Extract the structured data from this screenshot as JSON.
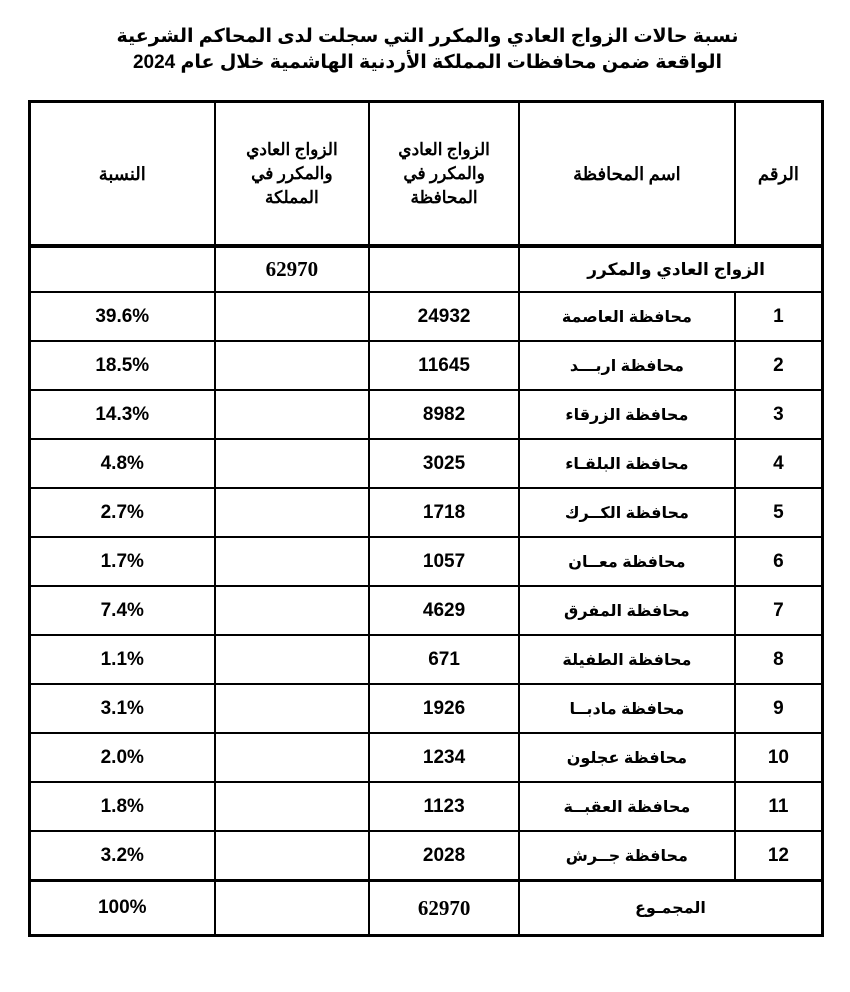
{
  "title": {
    "line1": "نسبة حالات الزواج العادي والمكرر التي سجلت لدى المحاكم الشرعية",
    "line2": "الواقعة ضمن محافظات المملكة الأردنية الهاشمية خلال عام 2024"
  },
  "table": {
    "headers": {
      "number": "الرقم",
      "governorate_name": "اسم المحافظة",
      "governorate_count": "الزواج العادي والمكرر في المحافظة",
      "kingdom_count": "الزواج العادي والمكرر في المملكة",
      "percentage": "النسبة"
    },
    "subheader": {
      "label": "الزواج العادي والمكرر",
      "kingdom_total": "62970"
    },
    "rows": [
      {
        "number": "1",
        "name": "محافظة العاصمة",
        "count": "24932",
        "percentage": "39.6%"
      },
      {
        "number": "2",
        "name": "محافظة اربـــد",
        "count": "11645",
        "percentage": "18.5%"
      },
      {
        "number": "3",
        "name": "محافظة الزرقاء",
        "count": "8982",
        "percentage": "14.3%"
      },
      {
        "number": "4",
        "name": "محافظة البلقـاء",
        "count": "3025",
        "percentage": "4.8%"
      },
      {
        "number": "5",
        "name": "محافظة الكــرك",
        "count": "1718",
        "percentage": "2.7%"
      },
      {
        "number": "6",
        "name": "محافظة معــان",
        "count": "1057",
        "percentage": "1.7%"
      },
      {
        "number": "7",
        "name": "محافظة المفرق",
        "count": "4629",
        "percentage": "7.4%"
      },
      {
        "number": "8",
        "name": "محافظة الطفيلة",
        "count": "671",
        "percentage": "1.1%"
      },
      {
        "number": "9",
        "name": "محافظة مادبــا",
        "count": "1926",
        "percentage": "3.1%"
      },
      {
        "number": "10",
        "name": "محافظة عجلون",
        "count": "1234",
        "percentage": "2.0%"
      },
      {
        "number": "11",
        "name": "محافظة العقبــة",
        "count": "1123",
        "percentage": "1.8%"
      },
      {
        "number": "12",
        "name": "محافظة جــرش",
        "count": "2028",
        "percentage": "3.2%"
      }
    ],
    "total": {
      "label": "المجمـوع",
      "count": "62970",
      "percentage": "100%"
    }
  }
}
